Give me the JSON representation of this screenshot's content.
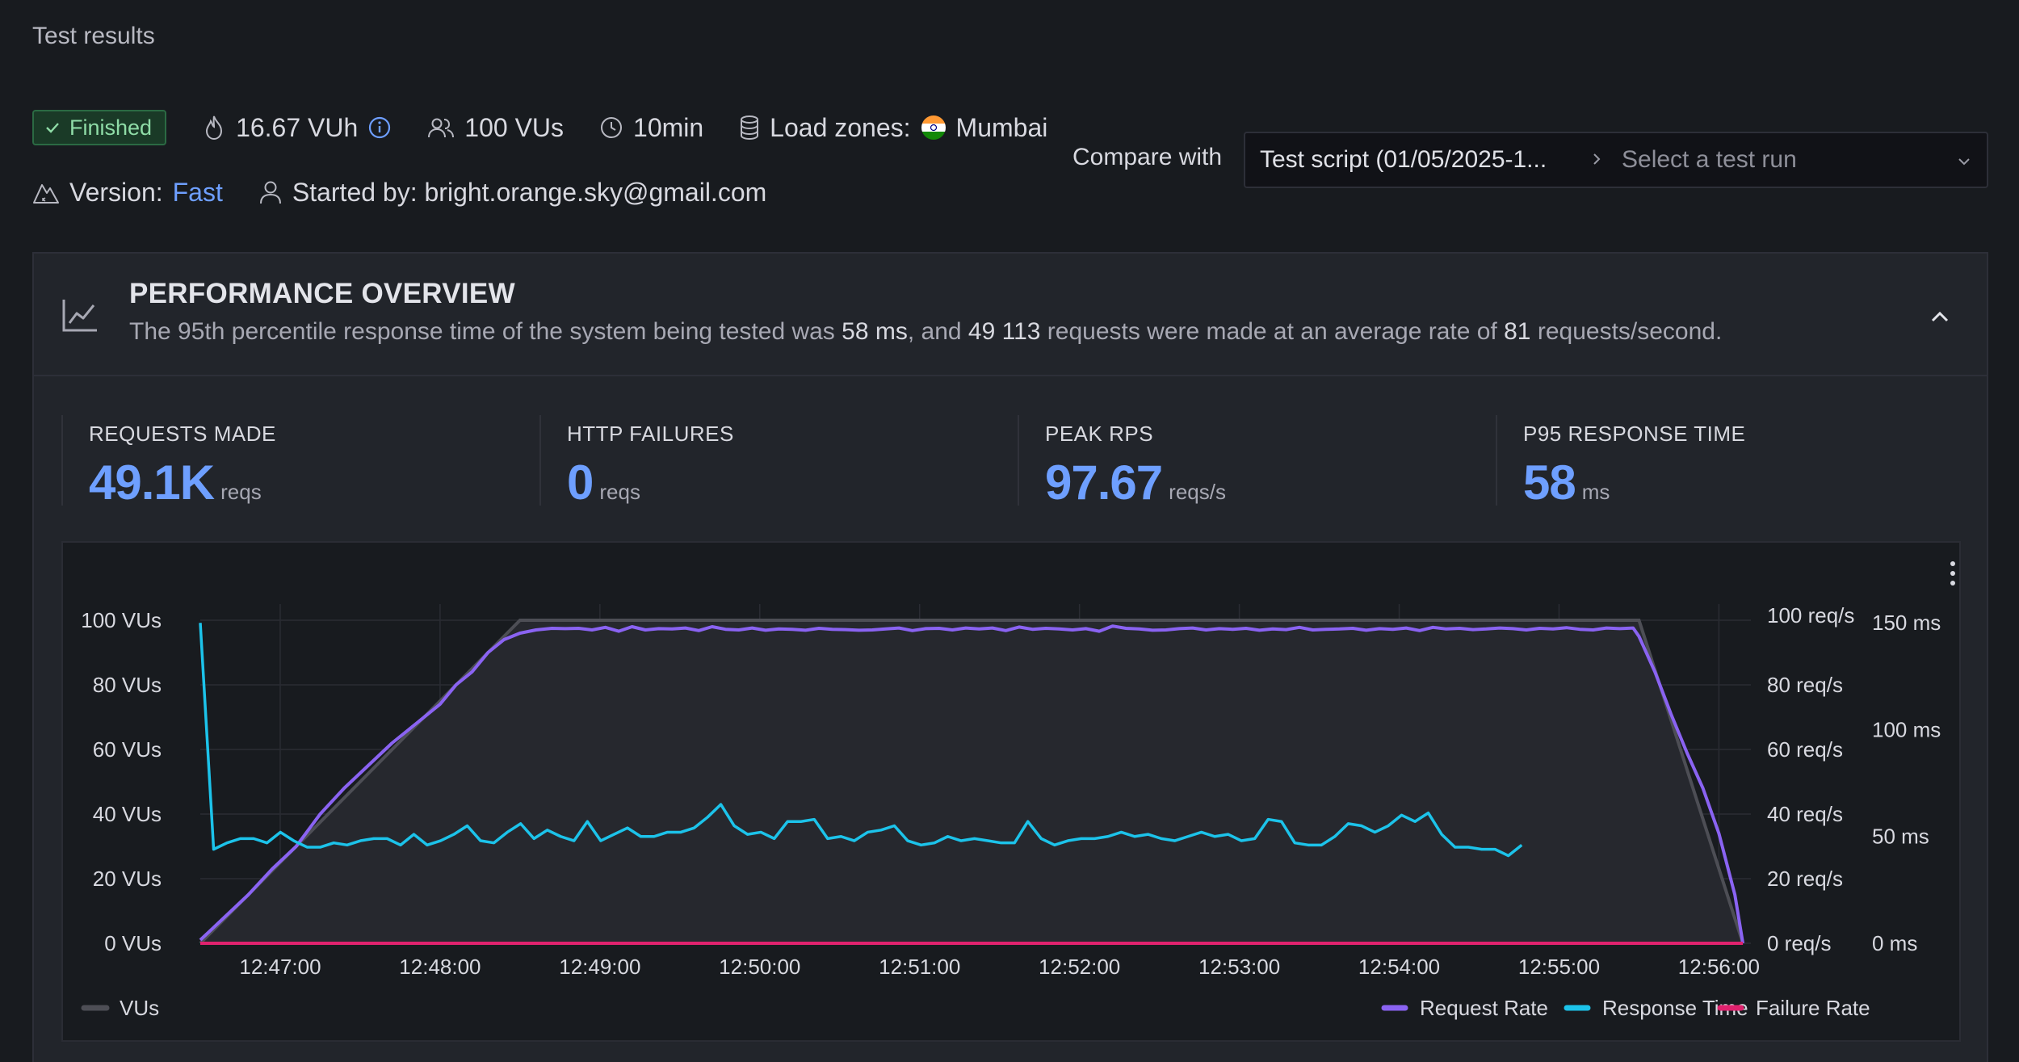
{
  "page": {
    "title": "Test results"
  },
  "meta": {
    "status": "Finished",
    "vuh": "16.67 VUh",
    "vus": "100 VUs",
    "duration": "10min",
    "load_zones_label": "Load zones:",
    "load_zone": "Mumbai",
    "version_label": "Version:",
    "version": "Fast",
    "started_by": "Started by: bright.orange.sky@gmail.com"
  },
  "compare": {
    "label": "Compare with",
    "script": "Test script (01/05/2025-1...",
    "placeholder": "Select a test run"
  },
  "overview": {
    "title": "PERFORMANCE OVERVIEW",
    "summary": {
      "pre": "The 95th percentile response time of the system being tested was ",
      "p95": "58 ms",
      "mid": ", and ",
      "requests": "49 113",
      "mid2": " requests were made at an average rate of ",
      "rate": "81",
      "post": " requests/second."
    }
  },
  "stats": [
    {
      "label": "REQUESTS MADE",
      "value": "49.1K",
      "unit": "reqs"
    },
    {
      "label": "HTTP FAILURES",
      "value": "0",
      "unit": "reqs"
    },
    {
      "label": "PEAK RPS",
      "value": "97.67",
      "unit": "reqs/s"
    },
    {
      "label": "P95 RESPONSE TIME",
      "value": "58",
      "unit": "ms"
    }
  ],
  "colors": {
    "accent": "#6e9fff",
    "vus": "#4d4e55",
    "request_rate": "#8a63f2",
    "response_time": "#1cc3ea",
    "failure_rate": "#e0226e",
    "finished": "#8fdca7"
  },
  "chart_data": {
    "type": "line",
    "x_ticks": [
      "12:47:00",
      "12:48:00",
      "12:49:00",
      "12:50:00",
      "12:51:00",
      "12:52:00",
      "12:53:00",
      "12:54:00",
      "12:55:00",
      "12:56:00"
    ],
    "x_range_min_from_1247": [
      -0.5,
      9.2
    ],
    "y_left": {
      "ticks": [
        "0 VUs",
        "20 VUs",
        "40 VUs",
        "60 VUs",
        "80 VUs",
        "100 VUs"
      ],
      "range": [
        0,
        100
      ]
    },
    "y_right1": {
      "ticks": [
        "0 req/s",
        "20 req/s",
        "40 req/s",
        "60 req/s",
        "80 req/s",
        "100 req/s"
      ],
      "range": [
        0,
        100
      ]
    },
    "y_right2": {
      "ticks": [
        "0 ms",
        "50 ms",
        "100 ms",
        "150 ms"
      ],
      "range": [
        0,
        155
      ]
    },
    "legend_left": [
      {
        "name": "VUs"
      }
    ],
    "legend_right": [
      {
        "name": "Request Rate"
      },
      {
        "name": "Response Time"
      },
      {
        "name": "Failure Rate"
      }
    ],
    "vus_series": {
      "t": [
        -0.5,
        1.5,
        8.5,
        9.15
      ],
      "v": [
        0,
        100,
        100,
        0
      ]
    },
    "request_rate": {
      "ramp_t": [
        -0.5,
        -0.35,
        -0.2,
        -0.05,
        0.1,
        0.25,
        0.4,
        0.55,
        0.7,
        0.85,
        1.0,
        1.1,
        1.2,
        1.3,
        1.4,
        1.5,
        1.6
      ],
      "ramp_v": [
        1,
        8,
        15,
        23,
        30,
        40,
        48,
        55,
        62,
        68,
        74,
        80,
        84,
        90,
        94,
        96,
        97
      ],
      "plateau_start": 1.7,
      "plateau_step": 0.0835,
      "plateau_v": [
        97.5,
        97.4,
        97.5,
        97.0,
        97.8,
        96.6,
        98.0,
        97.0,
        97.4,
        97.3,
        97.6,
        96.8,
        98.0,
        97.2,
        97.0,
        97.6,
        96.9,
        97.3,
        97.2,
        96.9,
        97.5,
        97.2,
        97.1,
        96.9,
        97.0,
        97.3,
        97.6,
        96.8,
        97.4,
        97.5,
        97.0,
        97.6,
        97.3,
        97.6,
        96.8,
        97.9,
        97.2,
        97.5,
        97.3,
        97.0,
        97.4,
        96.6,
        98.2,
        97.5,
        97.3,
        96.9,
        97.0,
        97.4,
        97.6,
        97.0,
        97.4,
        97.2,
        97.5,
        96.9,
        97.3,
        97.1,
        97.8,
        97.0,
        97.2,
        97.3,
        97.5,
        96.9,
        97.4,
        97.2,
        97.6,
        96.8,
        97.8,
        97.3,
        97.5,
        97.1,
        97.3,
        97.6,
        97.4,
        97.0,
        97.5,
        97.3,
        97.7,
        97.2,
        97.0,
        97.6,
        97.4,
        97.6
      ],
      "ramp_down_t": [
        8.5,
        8.6,
        8.7,
        8.8,
        8.9,
        9.0,
        9.1,
        9.15
      ],
      "ramp_down_v": [
        95,
        84,
        71,
        59,
        48,
        34,
        15,
        0
      ]
    },
    "response_time": {
      "start": -0.5,
      "step": 0.0835,
      "v": [
        150,
        44,
        47,
        49,
        49,
        47,
        52,
        48,
        45,
        45,
        47,
        46,
        48,
        49,
        49,
        46,
        51,
        46,
        48,
        51,
        55,
        48,
        47,
        52,
        56,
        49,
        53,
        50,
        48,
        57,
        48,
        51,
        54,
        50,
        50,
        52,
        52,
        54,
        59,
        65,
        55,
        51,
        52,
        49,
        57,
        57,
        58,
        49,
        50,
        48,
        52,
        53,
        55,
        48,
        46,
        47,
        50,
        48,
        49,
        48,
        47,
        47,
        57,
        49,
        46,
        48,
        49,
        49,
        50,
        52,
        50,
        51,
        49,
        48,
        50,
        52,
        50,
        51,
        48,
        49,
        58,
        57,
        47,
        46,
        46,
        50,
        56,
        55,
        52,
        55,
        60,
        57,
        61,
        51,
        45,
        45,
        44,
        44,
        41,
        46
      ]
    },
    "failure_rate": {
      "value": 0
    }
  }
}
